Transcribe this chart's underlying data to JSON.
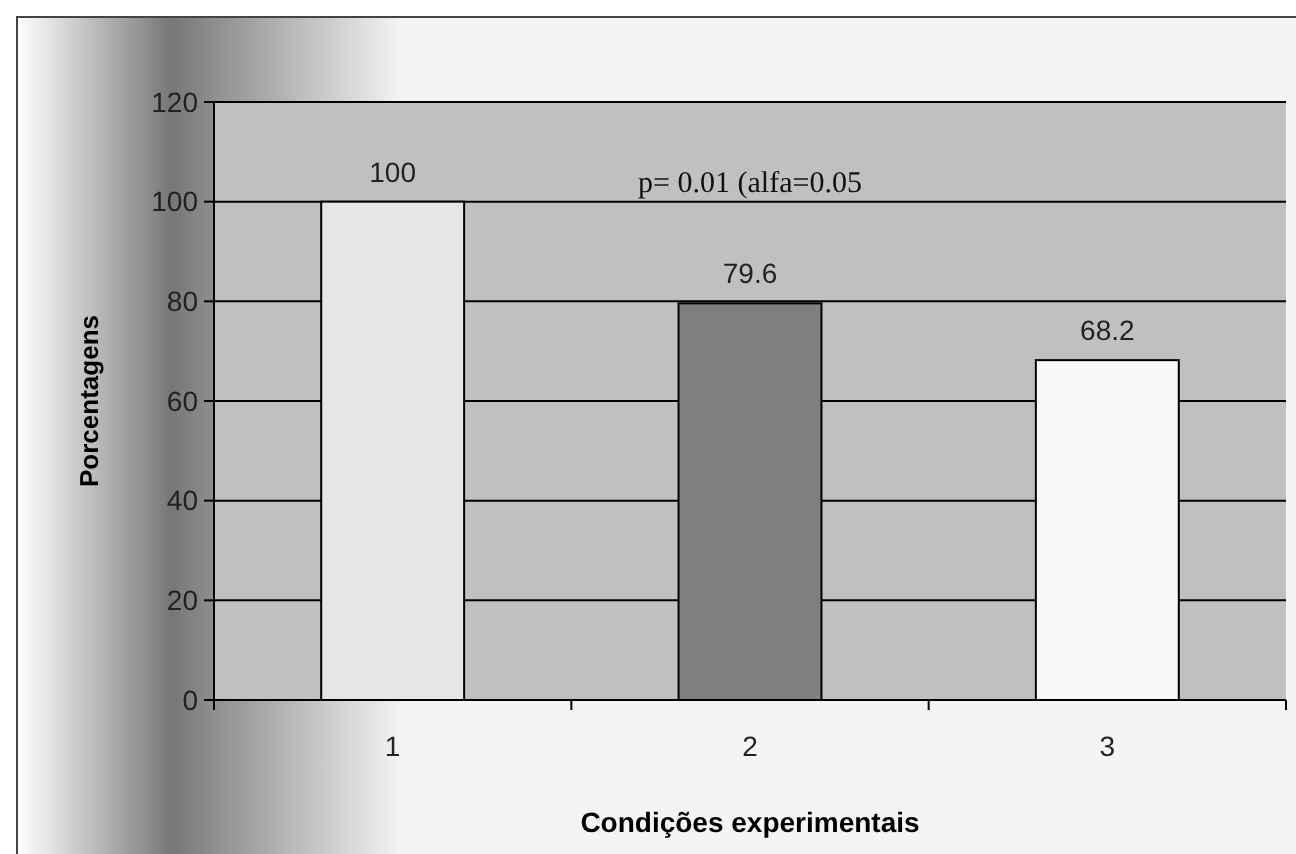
{
  "chart_data": {
    "type": "bar",
    "xlabel": "Condições experimentais",
    "ylabel": "Porcentagens",
    "categories": [
      "1",
      "2",
      "3"
    ],
    "values": [
      100,
      79.6,
      68.2
    ],
    "colors": [
      "#e6e6e6",
      "#7f7f7f",
      "#f8f8f8"
    ],
    "ylim": [
      0,
      120
    ],
    "yticks": [
      0,
      20,
      40,
      60,
      80,
      100,
      120
    ],
    "grid": "y",
    "data_labels": true,
    "annotations": [
      "p= 0.01 (alfa=0.05"
    ]
  }
}
